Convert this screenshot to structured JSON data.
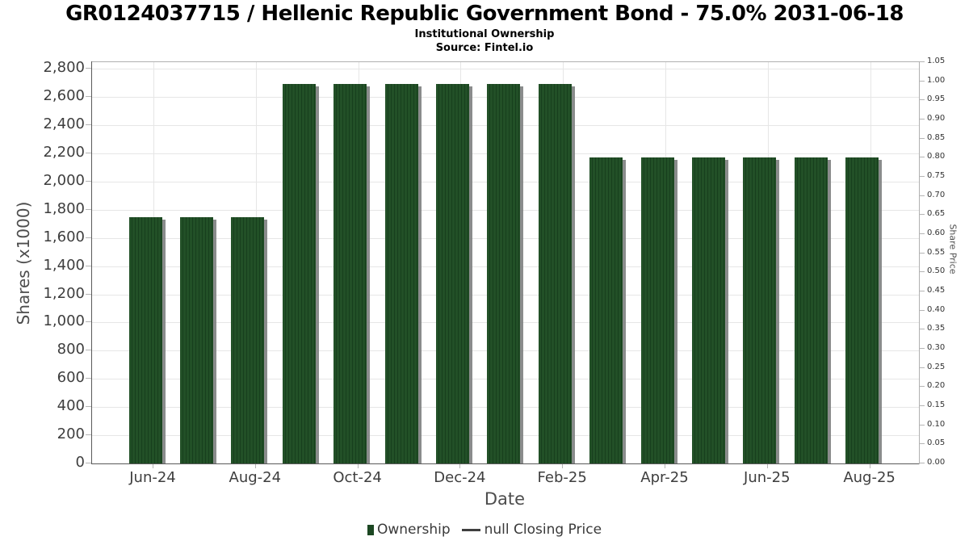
{
  "header": {
    "title": "GR0124037715 / Hellenic Republic Government Bond - 75.0% 2031-06-18",
    "subtitle": "Institutional Ownership",
    "source": "Source: Fintel.io"
  },
  "axes": {
    "left": {
      "title": "Shares (x1000)",
      "tick_labels": [
        "2,800",
        "2,600",
        "2,400",
        "2,200",
        "2,000",
        "1,800",
        "1,600",
        "1,400",
        "1,200",
        "1,000",
        "800",
        "600",
        "400",
        "200",
        "0"
      ]
    },
    "right": {
      "title": "Share Price",
      "tick_labels": [
        "1.05",
        "1.00",
        "0.95",
        "0.90",
        "0.85",
        "0.80",
        "0.75",
        "0.70",
        "0.65",
        "0.60",
        "0.55",
        "0.50",
        "0.45",
        "0.40",
        "0.35",
        "0.30",
        "0.25",
        "0.20",
        "0.15",
        "0.10",
        "0.05",
        "0.00"
      ]
    },
    "x": {
      "title": "Date",
      "tick_labels": [
        "Jun-24",
        "Aug-24",
        "Oct-24",
        "Dec-24",
        "Feb-25",
        "Apr-25",
        "Jun-25",
        "Aug-25"
      ]
    }
  },
  "legend": {
    "items": [
      {
        "label": "Ownership",
        "marker": "square",
        "color": "#1c4722"
      },
      {
        "label": "null Closing Price",
        "marker": "line",
        "color": "#3f3f3f"
      }
    ]
  },
  "colors": {
    "bar_stripe_light": "#225027",
    "bar_stripe_dark": "#173f1d",
    "bar_shadow": "#7d8080",
    "grid": "#e6e6e6",
    "frame": "#b0b0b0",
    "axis": "#5a5a5a",
    "tick_text": "#3e3e3e",
    "axis_title_text": "#4d4d4d",
    "title_text": "#000000"
  },
  "chart_data": {
    "type": "bar",
    "title": "GR0124037715 / Hellenic Republic Government Bond - 75.0% 2031-06-18",
    "subtitle": "Institutional Ownership",
    "source": "Source: Fintel.io",
    "categories": [
      "Jun-24",
      "Jul-24",
      "Aug-24",
      "Sep-24",
      "Oct-24",
      "Nov-24",
      "Dec-24",
      "Jan-25",
      "Feb-25",
      "Mar-25",
      "Apr-25",
      "May-25",
      "Jun-25",
      "Jul-25",
      "Aug-25"
    ],
    "series": [
      {
        "name": "Ownership",
        "type": "bar",
        "units": "shares x1000",
        "values": [
          1750,
          1750,
          1750,
          2695,
          2695,
          2695,
          2695,
          2695,
          2695,
          2170,
          2170,
          2170,
          2170,
          2170,
          2170
        ]
      },
      {
        "name": "null Closing Price",
        "type": "line",
        "values": []
      }
    ],
    "xlabel": "Date",
    "ylabel": "Shares (x1000)",
    "ylabel_right": "Share Price",
    "ylim": [
      0,
      2800
    ],
    "ylim_right": [
      0,
      1.05
    ],
    "x_labeled_ticks": [
      "Jun-24",
      "Aug-24",
      "Oct-24",
      "Dec-24",
      "Feb-25",
      "Apr-25",
      "Jun-25",
      "Aug-25"
    ],
    "grid": true,
    "legend_position": "bottom"
  }
}
